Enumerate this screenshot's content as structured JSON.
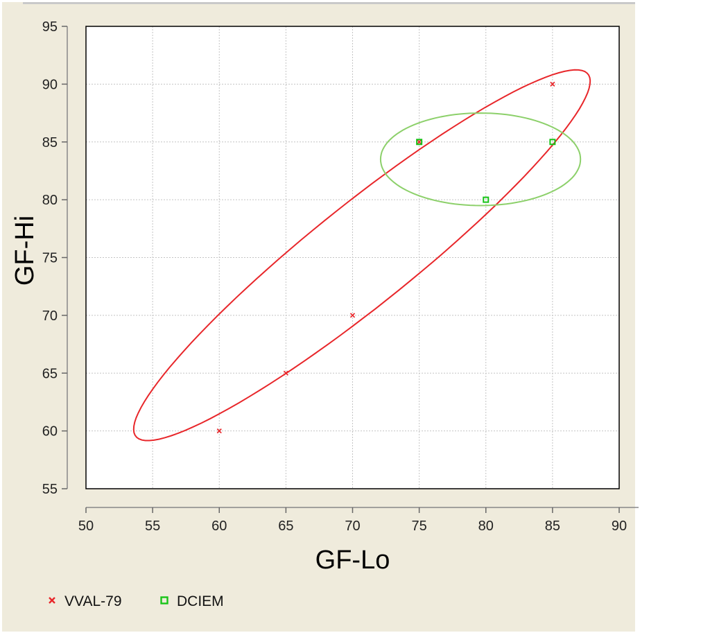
{
  "chart_data": {
    "type": "scatter",
    "title": "",
    "xlabel": "GF-Lo",
    "ylabel": "GF-Hi",
    "xlim": [
      50,
      90
    ],
    "ylim": [
      55,
      95
    ],
    "xticks": [
      50,
      55,
      60,
      65,
      70,
      75,
      80,
      85,
      90
    ],
    "yticks": [
      55,
      60,
      65,
      70,
      75,
      80,
      85,
      90,
      95
    ],
    "grid": true,
    "legend_position": "bottom-left",
    "series": [
      {
        "name": "VVAL-79",
        "marker": "x",
        "color": "#e8262a",
        "points": [
          [
            60,
            60
          ],
          [
            65,
            65
          ],
          [
            70,
            70
          ],
          [
            75,
            85
          ],
          [
            85,
            90
          ]
        ],
        "density_ellipse": {
          "center": [
            70.7,
            75.2
          ],
          "semi_major": 23.1,
          "semi_minor": 4.1,
          "angle_deg": 43
        }
      },
      {
        "name": "DCIEM",
        "marker": "square",
        "color": "#18c418",
        "ellipse_color": "#8cd06a",
        "points": [
          [
            75,
            85
          ],
          [
            80,
            80
          ],
          [
            85,
            85
          ]
        ],
        "density_ellipse": {
          "center": [
            79.6,
            83.5
          ],
          "semi_major": 7.5,
          "semi_minor": 4.0,
          "angle_deg": 0
        }
      }
    ]
  }
}
